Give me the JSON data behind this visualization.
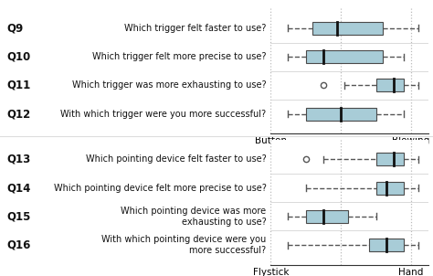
{
  "top_questions": [
    "Q9",
    "Q10",
    "Q11",
    "Q12"
  ],
  "top_labels": [
    "Which trigger felt faster to use?",
    "Which trigger felt more precise to use?",
    "Which trigger was more exhausting to use?",
    "With which trigger were you more successful?"
  ],
  "top_xlabel_left": "Button",
  "top_xlabel_right": "Blowing",
  "top_boxes": [
    {
      "whislo": 1.5,
      "q1": 2.2,
      "med": 2.9,
      "q3": 4.2,
      "whishi": 5.2,
      "fliers": []
    },
    {
      "whislo": 1.5,
      "q1": 2.0,
      "med": 2.5,
      "q3": 4.2,
      "whishi": 4.8,
      "fliers": []
    },
    {
      "whislo": 3.1,
      "q1": 4.0,
      "med": 4.5,
      "q3": 4.8,
      "whishi": 5.2,
      "fliers": [
        2.5
      ]
    },
    {
      "whislo": 1.5,
      "q1": 2.0,
      "med": 3.0,
      "q3": 4.0,
      "whishi": 4.8,
      "fliers": []
    }
  ],
  "bottom_questions": [
    "Q13",
    "Q14",
    "Q15",
    "Q16"
  ],
  "bottom_labels": [
    "Which pointing device felt faster to use?",
    "Which pointing device felt more precise to use?",
    "Which pointing device was more\nexhausting to use?",
    "With which pointing device were you\nmore successful?"
  ],
  "bottom_xlabel_left": "Flystick",
  "bottom_xlabel_right": "Hand",
  "bottom_boxes": [
    {
      "whislo": 2.5,
      "q1": 4.0,
      "med": 4.5,
      "q3": 4.8,
      "whishi": 5.2,
      "fliers": [
        2.0
      ]
    },
    {
      "whislo": 2.0,
      "q1": 4.0,
      "med": 4.3,
      "q3": 4.8,
      "whishi": 5.2,
      "fliers": []
    },
    {
      "whislo": 1.5,
      "q1": 2.0,
      "med": 2.5,
      "q3": 3.2,
      "whishi": 4.0,
      "fliers": []
    },
    {
      "whislo": 1.5,
      "q1": 3.8,
      "med": 4.3,
      "q3": 4.8,
      "whishi": 5.2,
      "fliers": []
    }
  ],
  "xlim": [
    1.0,
    5.5
  ],
  "box_color": "#a8ccd7",
  "box_edge_color": "#4a4a4a",
  "median_color": "#111111",
  "whisker_color": "#555555",
  "flier_color": "#555555",
  "vline_color": "#bbbbbb",
  "sep_color": "#cccccc",
  "spine_color": "#333333",
  "bg_color": "#ffffff"
}
